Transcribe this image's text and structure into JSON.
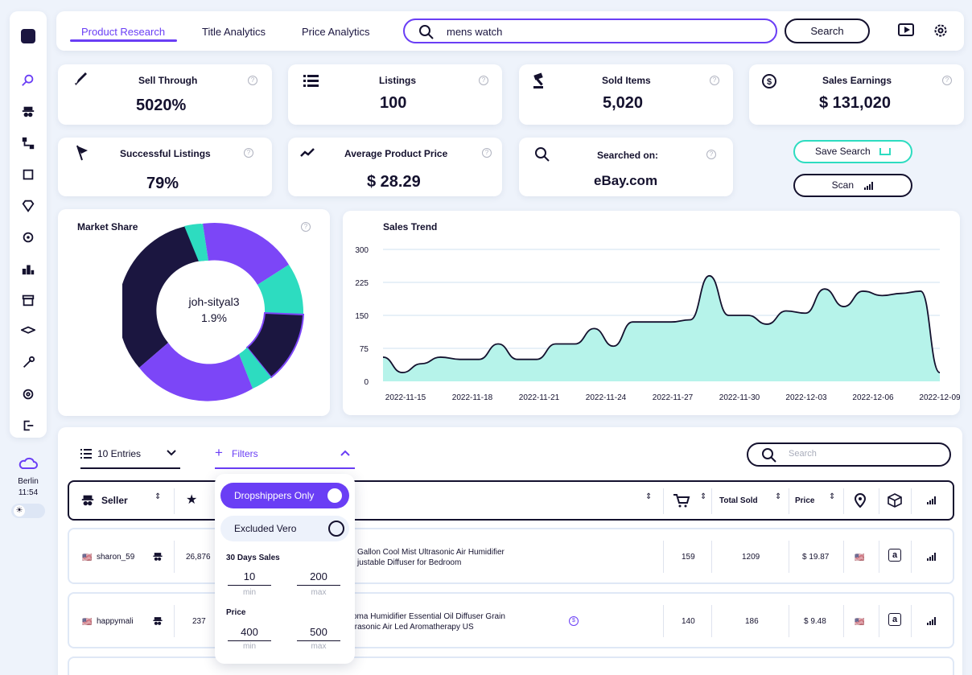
{
  "nav": {
    "tabs": [
      "Product Research",
      "Title Analytics",
      "Price Analytics"
    ],
    "search_value": "mens watch",
    "search_button": "Search"
  },
  "stats": [
    {
      "title": "Sell Through",
      "value": "5020%"
    },
    {
      "title": "Listings",
      "value": "100"
    },
    {
      "title": "Sold Items",
      "value": "5,020"
    },
    {
      "title": "Sales Earnings",
      "value": "$ 131,020"
    },
    {
      "title": "Successful Listings",
      "value": "79%"
    },
    {
      "title": "Average Product Price",
      "value": "$ 28.29"
    },
    {
      "title": "Searched on:",
      "value": "eBay.com"
    }
  ],
  "actions": {
    "save_search": "Save Search",
    "scan": "Scan"
  },
  "market_share": {
    "title": "Market Share",
    "center_label": "joh-sityal3",
    "center_value": "1.9%"
  },
  "chart_data": {
    "type": "area",
    "title": "Sales Trend",
    "ylim": [
      0,
      300
    ],
    "yticks": [
      0,
      75,
      150,
      225,
      300
    ],
    "xticks": [
      "2022-11-15",
      "2022-11-18",
      "2022-11-21",
      "2022-11-24",
      "2022-11-27",
      "2022-11-30",
      "2022-12-03",
      "2022-12-06",
      "2022-12-09"
    ],
    "values": [
      55,
      20,
      40,
      55,
      50,
      50,
      85,
      50,
      50,
      85,
      85,
      120,
      80,
      135,
      135,
      135,
      140,
      240,
      150,
      150,
      130,
      160,
      155,
      210,
      170,
      205,
      195,
      200,
      205,
      20
    ],
    "color": "#b6f3ea",
    "line_color": "#14112e"
  },
  "table": {
    "entries": "10 Entries",
    "filters": "Filters",
    "search_placeholder": "Search",
    "headers": {
      "seller": "Seller",
      "total_sold": "Total Sold",
      "price": "Price"
    },
    "rows": [
      {
        "seller": "sharon_59",
        "feedback": "26,876",
        "title_line1": "Gallon Cool Mist Ultrasonic Air Humidifier",
        "title_line2": "justable Diffuser for Bedroom",
        "sold30": "159",
        "total_sold": "1209",
        "price": "$ 19.87"
      },
      {
        "seller": "happymali",
        "feedback": "237",
        "title_line1": "oma Humidifier Essential Oil Diffuser Grain",
        "title_line2": "trasonic Air Led Aromatherapy US",
        "sold30": "140",
        "total_sold": "186",
        "price": "$ 9.48"
      }
    ]
  },
  "filters_panel": {
    "dropshippers": "Dropshippers Only",
    "excluded_vero": "Excluded Vero",
    "sales_label": "30 Days Sales",
    "sales_min": "10",
    "sales_max": "200",
    "price_label": "Price",
    "price_min": "400",
    "price_max": "500",
    "min_label": "min",
    "max_label": "max"
  },
  "clock": {
    "city": "Berlin",
    "time": "11:54"
  },
  "colors": {
    "accent": "#6a3ef5",
    "teal": "#2ddcc0",
    "dark": "#14112e"
  }
}
